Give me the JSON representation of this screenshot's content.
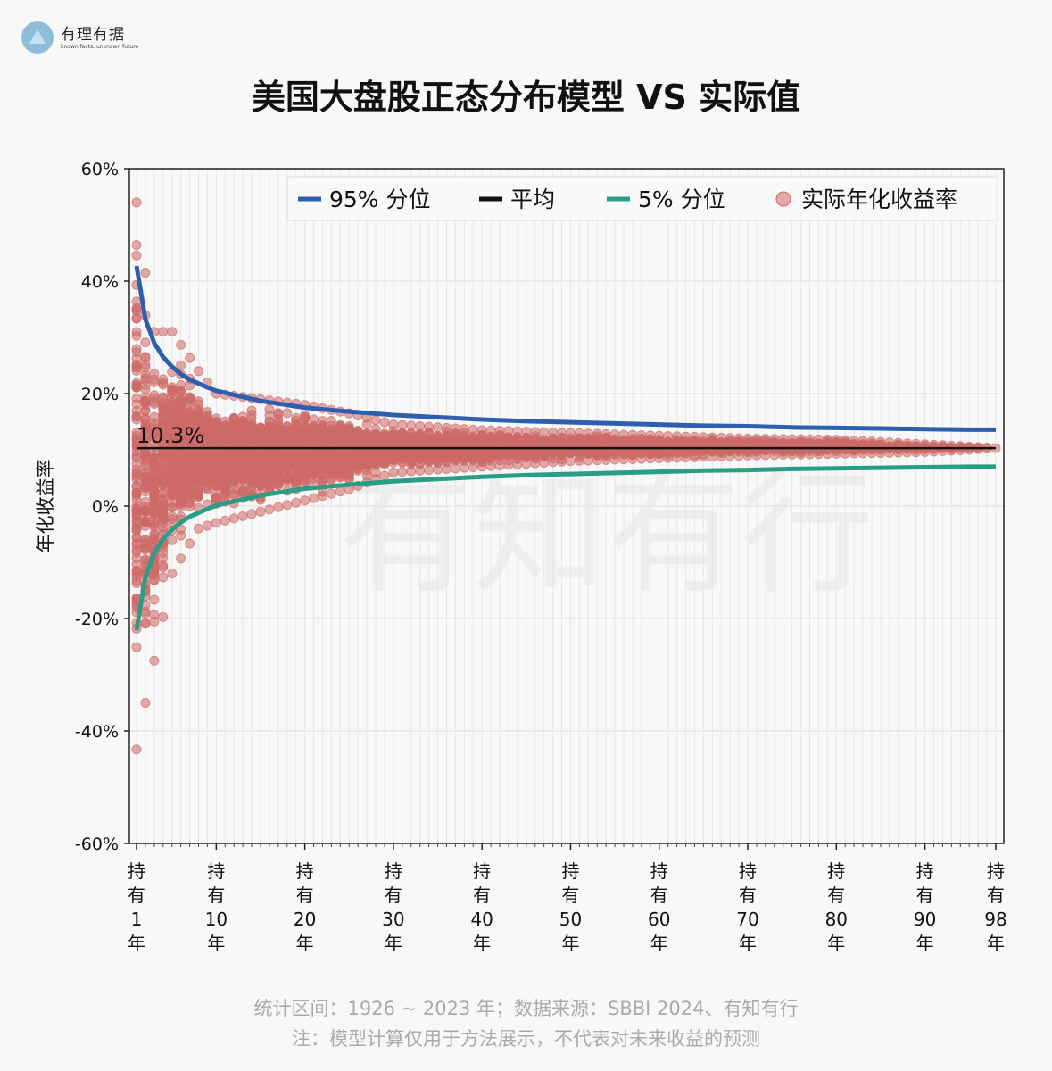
{
  "logo": {
    "name": "有理有据",
    "tagline": "known facts, unknown future"
  },
  "watermark": "有知有行",
  "footer": {
    "line1": "统计区间：1926 ~ 2023 年；数据来源：SBBI 2024、有知有行",
    "line2": "注：模型计算仅用于方法展示，不代表对未来收益的预测"
  },
  "chart_data": {
    "type": "scatter",
    "title": "美国大盘股正态分布模型 VS 实际值",
    "ylabel": "年化收益率",
    "ylim": [
      -60,
      60
    ],
    "yticks": [
      "60%",
      "40%",
      "20%",
      "0%",
      "-20%",
      "-40%",
      "-60%"
    ],
    "ytick_values": [
      60,
      40,
      20,
      0,
      -20,
      -40,
      -60
    ],
    "xlim": [
      1,
      98
    ],
    "xticks": [
      {
        "v": 1,
        "label": [
          "持",
          "有",
          "1",
          "年"
        ]
      },
      {
        "v": 10,
        "label": [
          "持",
          "有",
          "10",
          "年"
        ]
      },
      {
        "v": 20,
        "label": [
          "持",
          "有",
          "20",
          "年"
        ]
      },
      {
        "v": 30,
        "label": [
          "持",
          "有",
          "30",
          "年"
        ]
      },
      {
        "v": 40,
        "label": [
          "持",
          "有",
          "40",
          "年"
        ]
      },
      {
        "v": 50,
        "label": [
          "持",
          "有",
          "50",
          "年"
        ]
      },
      {
        "v": 60,
        "label": [
          "持",
          "有",
          "60",
          "年"
        ]
      },
      {
        "v": 70,
        "label": [
          "持",
          "有",
          "70",
          "年"
        ]
      },
      {
        "v": 80,
        "label": [
          "持",
          "有",
          "80",
          "年"
        ]
      },
      {
        "v": 90,
        "label": [
          "持",
          "有",
          "90",
          "年"
        ]
      },
      {
        "v": 98,
        "label": [
          "持",
          "有",
          "98",
          "年"
        ]
      }
    ],
    "grid": true,
    "legend_placement": "top-right",
    "mean_label": "10.3%",
    "series": [
      {
        "name": "95% 分位",
        "color": "#2e5fae",
        "type": "line",
        "x": [
          1,
          2,
          3,
          4,
          5,
          6,
          7,
          8,
          9,
          10,
          15,
          20,
          25,
          30,
          35,
          40,
          45,
          50,
          55,
          60,
          65,
          70,
          75,
          80,
          85,
          90,
          95,
          98
        ],
        "y": [
          42.7,
          33.2,
          29.0,
          26.5,
          24.8,
          23.5,
          22.5,
          21.8,
          21.1,
          20.5,
          18.7,
          17.5,
          16.8,
          16.2,
          15.8,
          15.4,
          15.1,
          14.9,
          14.7,
          14.5,
          14.3,
          14.2,
          14.0,
          13.9,
          13.8,
          13.7,
          13.6,
          13.6
        ]
      },
      {
        "name": "平均",
        "color": "#111111",
        "type": "line",
        "x": [
          1,
          98
        ],
        "y": [
          10.3,
          10.3
        ]
      },
      {
        "name": "5% 分位",
        "color": "#2a9d86",
        "type": "line",
        "x": [
          1,
          2,
          3,
          4,
          5,
          6,
          7,
          8,
          9,
          10,
          15,
          20,
          25,
          30,
          35,
          40,
          45,
          50,
          55,
          60,
          65,
          70,
          75,
          80,
          85,
          90,
          95,
          98
        ],
        "y": [
          -22.1,
          -12.6,
          -8.4,
          -5.9,
          -4.2,
          -2.9,
          -1.9,
          -1.2,
          -0.5,
          0.1,
          1.9,
          3.1,
          3.8,
          4.4,
          4.8,
          5.2,
          5.5,
          5.7,
          5.9,
          6.1,
          6.3,
          6.4,
          6.6,
          6.7,
          6.8,
          6.9,
          7.0,
          7.0
        ]
      },
      {
        "name": "实际年化收益率",
        "color": "#cd6a66",
        "type": "scatter",
        "range_x": [
          1,
          2,
          3,
          5,
          8,
          10,
          15,
          20,
          25,
          30,
          40,
          50,
          60,
          70,
          80,
          90,
          98
        ],
        "range_min": [
          -43.3,
          -35,
          -27.5,
          -12,
          -4,
          -3,
          -1,
          1,
          3,
          6,
          7,
          8,
          8.5,
          9,
          9.3,
          9.6,
          10.3
        ],
        "range_max": [
          54,
          41.5,
          31,
          31,
          24,
          20,
          19,
          18,
          16.5,
          14.5,
          13.5,
          13,
          12.5,
          12,
          11.8,
          11,
          10.3
        ]
      }
    ]
  }
}
